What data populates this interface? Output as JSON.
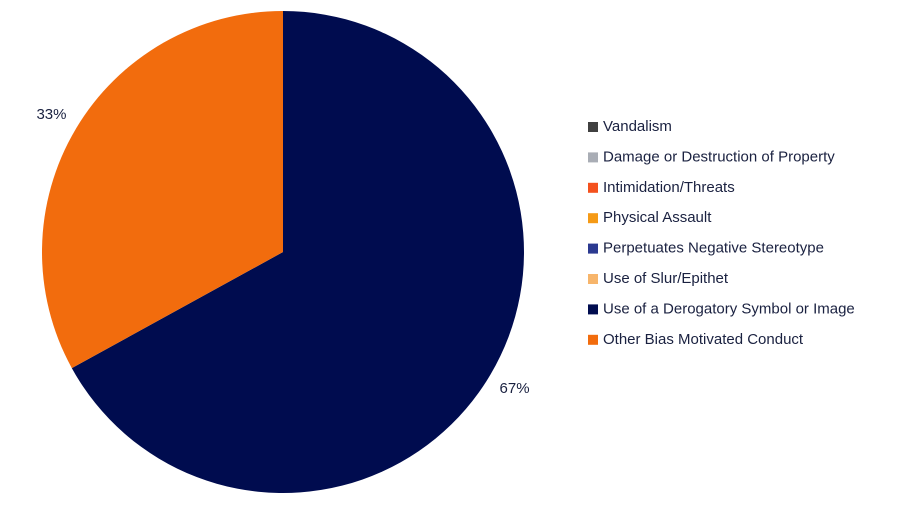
{
  "chart_data": {
    "type": "pie",
    "categories": [
      "Vandalism",
      "Damage or Destruction of Property",
      "Intimidation/Threats",
      "Physical Assault",
      "Perpetuates Negative Stereotype",
      "Use of Slur/Epithet",
      "Use of a Derogatory Symbol or Image",
      "Other Bias Motivated Conduct"
    ],
    "values": [
      0,
      0,
      0,
      0,
      0,
      0,
      67,
      33
    ],
    "value_labels": [
      null,
      null,
      null,
      null,
      null,
      null,
      "67%",
      "33%"
    ],
    "colors": [
      "#404040",
      "#a9adb5",
      "#f4511e",
      "#f59a16",
      "#2b3990",
      "#f7b56b",
      "#000c4f",
      "#f26c0d"
    ],
    "legend": "right"
  }
}
